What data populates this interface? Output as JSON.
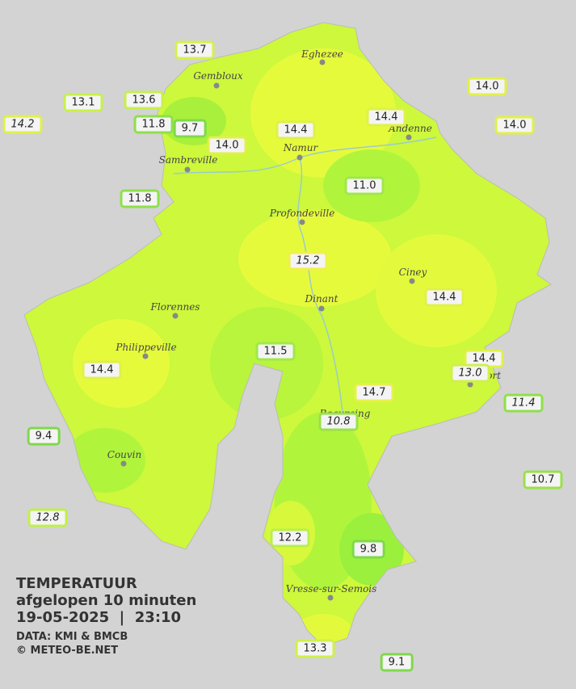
{
  "map": {
    "cities": [
      "Eghezee",
      "Gembloux",
      "Andenne",
      "Namur",
      "Sambreville",
      "Profondeville",
      "Ciney",
      "Dinant",
      "Florennes",
      "Philippeville",
      "Couvin",
      "Rochefort",
      "Beauraing",
      "Vresse-sur-Semois"
    ],
    "stations": [
      {
        "label": "13.7",
        "italic": false,
        "border": "#d8f04a"
      },
      {
        "label": "13.1",
        "italic": false,
        "border": "#c8f04a"
      },
      {
        "label": "13.6",
        "italic": false,
        "border": "#c8f04a"
      },
      {
        "label": "14.2",
        "italic": true,
        "border": "#e0f04a"
      },
      {
        "label": "11.8",
        "italic": false,
        "border": "#8ee04a"
      },
      {
        "label": "9.7",
        "italic": false,
        "border": "#7fd94a"
      },
      {
        "label": "14.0",
        "italic": false,
        "border": "#e0f04a"
      },
      {
        "label": "14.4",
        "italic": false,
        "border": "#e0f04a"
      },
      {
        "label": "14.4",
        "italic": false,
        "border": "#e0f04a"
      },
      {
        "label": "14.0",
        "italic": false,
        "border": "#e0f04a"
      },
      {
        "label": "14.0",
        "italic": false,
        "border": "#e0f04a"
      },
      {
        "label": "11.8",
        "italic": false,
        "border": "#8ee04a"
      },
      {
        "label": "11.0",
        "italic": false,
        "border": "#a0e84a"
      },
      {
        "label": "15.2",
        "italic": true,
        "border": "#f0f04a"
      },
      {
        "label": "14.4",
        "italic": false,
        "border": "#e0f04a"
      },
      {
        "label": "14.4",
        "italic": false,
        "border": "#e0f04a"
      },
      {
        "label": "13.0",
        "italic": true,
        "border": "#d0f04a"
      },
      {
        "label": "11.4",
        "italic": true,
        "border": "#8ee04a"
      },
      {
        "label": "11.5",
        "italic": false,
        "border": "#a0e84a"
      },
      {
        "label": "14.4",
        "italic": false,
        "border": "#e0f04a"
      },
      {
        "label": "14.7",
        "italic": false,
        "border": "#e8f04a"
      },
      {
        "label": "10.8",
        "italic": true,
        "border": "#9ae04a"
      },
      {
        "label": "9.4",
        "italic": false,
        "border": "#7fd94a"
      },
      {
        "label": "10.7",
        "italic": false,
        "border": "#9ae04a"
      },
      {
        "label": "12.8",
        "italic": true,
        "border": "#c0f04a"
      },
      {
        "label": "12.2",
        "italic": false,
        "border": "#b8f04a"
      },
      {
        "label": "9.8",
        "italic": false,
        "border": "#7fd94a"
      },
      {
        "label": "13.3",
        "italic": false,
        "border": "#d0f04a"
      },
      {
        "label": "9.1",
        "italic": false,
        "border": "#7fd94a"
      }
    ],
    "legend": {
      "title": "TEMPERATUUR",
      "period": "afgelopen 10 minuten",
      "datetime": "19-05-2025  |  23:10",
      "source": "DATA: KMI & BMCB",
      "copyright": "© METEO-BE.NET"
    }
  }
}
